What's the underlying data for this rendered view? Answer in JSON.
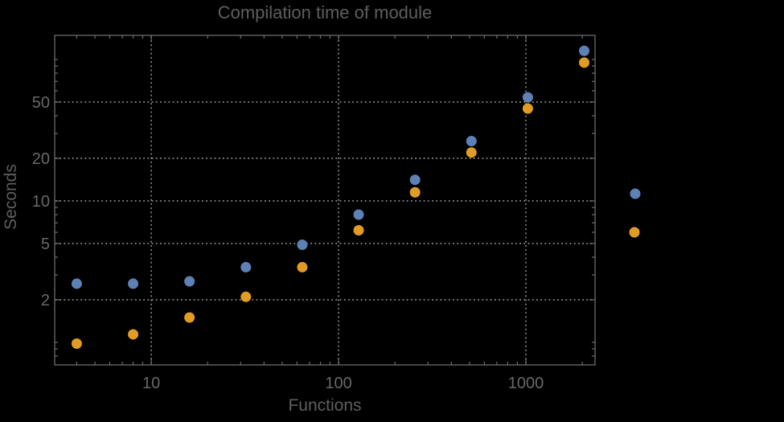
{
  "chart_data": {
    "type": "scatter",
    "title": "Compilation time of module",
    "xlabel": "Functions",
    "ylabel": "Seconds",
    "x_scale": "log",
    "y_scale": "log",
    "xlim": [
      3.05,
      2340
    ],
    "ylim": [
      0.693,
      148
    ],
    "grid": true,
    "grid_style": "dotted",
    "x": [
      4,
      8,
      16,
      32,
      64,
      128,
      256,
      512,
      1024,
      2048
    ],
    "series": [
      {
        "name": "blue-series",
        "color": "#5E81B5",
        "values": [
          2.6,
          2.6,
          2.7,
          3.4,
          4.9,
          8.0,
          14.1,
          26.5,
          54,
          115
        ]
      },
      {
        "name": "orange-series",
        "color": "#E19C24",
        "values": [
          0.98,
          1.14,
          1.5,
          2.1,
          3.4,
          6.2,
          11.5,
          22,
          45,
          95
        ]
      }
    ],
    "x_ticks": {
      "major": [
        10,
        100,
        1000
      ],
      "labels": [
        "10",
        "100",
        "1000"
      ],
      "minor": [
        4,
        5,
        6,
        7,
        8,
        9,
        20,
        30,
        40,
        50,
        60,
        70,
        80,
        90,
        200,
        300,
        400,
        500,
        600,
        700,
        800,
        900,
        2000
      ]
    },
    "y_ticks": {
      "major": [
        2,
        5,
        10,
        20,
        50
      ],
      "labels": [
        "2",
        "5",
        "10",
        "20",
        "50"
      ],
      "minor": [
        0.8,
        0.9,
        1,
        3,
        4,
        6,
        7,
        8,
        9,
        30,
        40,
        60,
        70,
        80,
        90,
        100
      ]
    },
    "legend": {
      "position": "right-of-plot",
      "labels_visible": false,
      "markers": [
        {
          "name": "blue-legend-marker",
          "color": "#5E81B5"
        },
        {
          "name": "orange-legend-marker",
          "color": "#E19C24"
        }
      ]
    }
  },
  "colors": {
    "background": "#000000",
    "frame": "#6C6C6C",
    "grid": "#949494",
    "title_text": "#5E5E5E",
    "tick_text": "#676767"
  }
}
